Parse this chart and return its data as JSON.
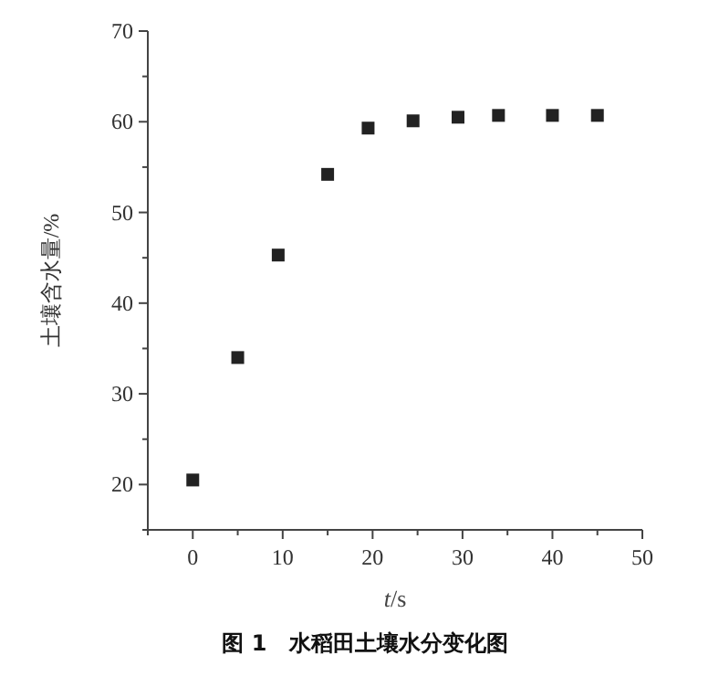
{
  "chart_data": {
    "type": "scatter",
    "xlabel": "*t*/s",
    "ylabel": "土壤含水量/%",
    "annotations": [
      "图 1　水稻田土壤水分变化图"
    ],
    "x": [
      0,
      5,
      9.5,
      15,
      19.5,
      24.5,
      29.5,
      34,
      40,
      45
    ],
    "series": [
      {
        "color": "#222222",
        "values": [
          20.5,
          34,
          45.3,
          54.2,
          59.3,
          60.1,
          60.5,
          60.7,
          60.7,
          60.7
        ]
      }
    ],
    "marker": "square",
    "xlim": [
      -5,
      50
    ],
    "ylim": [
      15,
      70
    ],
    "xticks": [
      {
        "value": -5,
        "label": null
      },
      0,
      {
        "value": 5,
        "label": null
      },
      10,
      {
        "value": 15,
        "label": null
      },
      20,
      {
        "value": 25,
        "label": null
      },
      30,
      {
        "value": 35,
        "label": null
      },
      40,
      {
        "value": 45,
        "label": null
      },
      50
    ],
    "yticks": [
      {
        "value": 15,
        "label": null
      },
      20,
      {
        "value": 25,
        "label": null
      },
      30,
      {
        "value": 35,
        "label": null
      },
      40,
      {
        "value": 45,
        "label": null
      },
      50,
      {
        "value": 55,
        "label": null
      },
      60,
      {
        "value": 65,
        "label": null
      },
      70
    ]
  }
}
